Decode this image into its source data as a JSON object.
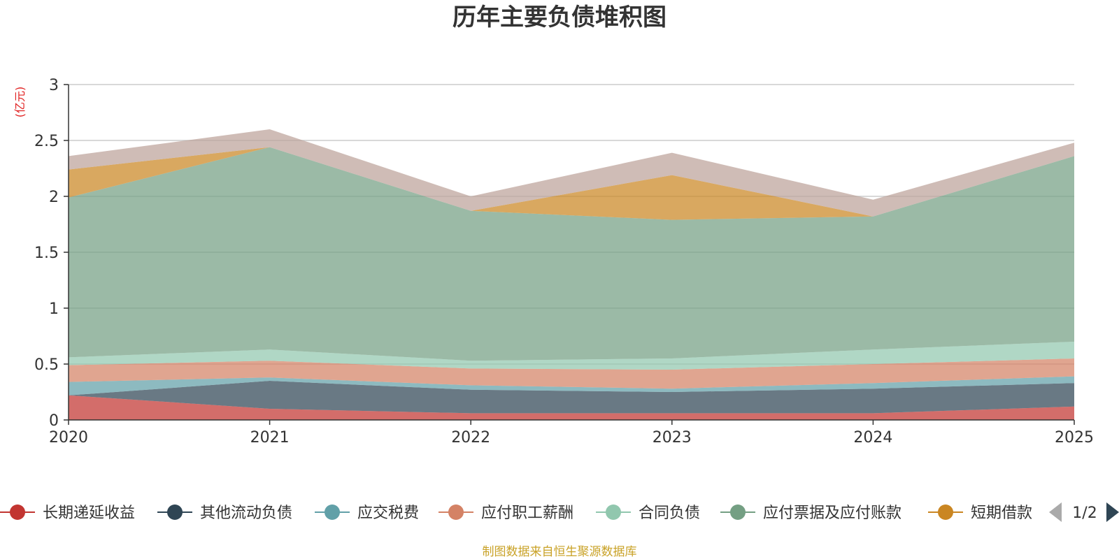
{
  "chart_data": {
    "type": "area",
    "stacked": true,
    "title": "历年主要负债堆积图",
    "ylabel": "(亿元)",
    "xlabel": "",
    "x": [
      "2020",
      "2021",
      "2022",
      "2023",
      "2024",
      "2025"
    ],
    "ylim": [
      0,
      3
    ],
    "yticks": [
      "0",
      "0.5",
      "1",
      "1.5",
      "2",
      "2.5",
      "3"
    ],
    "grid": true,
    "series": [
      {
        "name": "长期递延收益",
        "color": "#c23531",
        "values": [
          0.22,
          0.1,
          0.06,
          0.06,
          0.06,
          0.12
        ]
      },
      {
        "name": "其他流动负债",
        "color": "#2f4554",
        "values": [
          0.0,
          0.25,
          0.21,
          0.19,
          0.22,
          0.21
        ]
      },
      {
        "name": "应交税费",
        "color": "#61a0a8",
        "values": [
          0.12,
          0.03,
          0.04,
          0.03,
          0.05,
          0.06
        ]
      },
      {
        "name": "应付职工薪酬",
        "color": "#d48265",
        "values": [
          0.15,
          0.15,
          0.15,
          0.17,
          0.17,
          0.16
        ]
      },
      {
        "name": "合同负债",
        "color": "#91c7ae",
        "values": [
          0.07,
          0.1,
          0.07,
          0.1,
          0.13,
          0.15
        ]
      },
      {
        "name": "应付票据及应付账款",
        "color": "#749f83",
        "values": [
          1.43,
          1.81,
          1.34,
          1.24,
          1.19,
          1.66
        ]
      },
      {
        "name": "短期借款",
        "color": "#ca8622",
        "values": [
          0.25,
          0.0,
          0.0,
          0.4,
          0.0,
          0.0
        ]
      },
      {
        "name": "",
        "color": "#bda29a",
        "values": [
          0.12,
          0.16,
          0.13,
          0.2,
          0.15,
          0.12
        ]
      }
    ],
    "legend": {
      "position": "bottom",
      "items": [
        "长期递延收益",
        "其他流动负债",
        "应交税费",
        "应付职工薪酬",
        "合同负债",
        "应付票据及应付账款",
        "短期借款"
      ],
      "page_indicator": "1/2"
    },
    "source_note": "制图数据来自恒生聚源数据库"
  },
  "icons": {
    "prev": "chevron-left-icon",
    "next": "chevron-right-icon"
  }
}
